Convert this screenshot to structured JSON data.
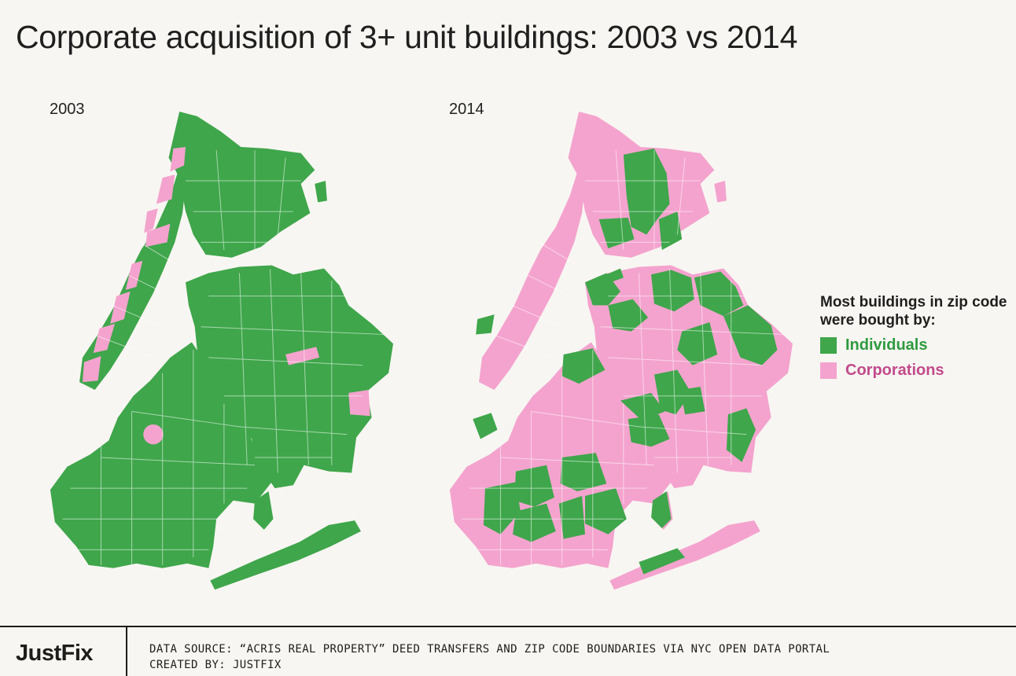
{
  "title": "Corporate acquisition of 3+ unit buildings: 2003 vs 2014",
  "colors": {
    "individuals": "#3fa64b",
    "corporations": "#f4a3ce",
    "corporations_text": "#c24a8c",
    "individuals_text": "#2e9a3f"
  },
  "maps": [
    {
      "year": "2003",
      "corporate_zip_share": "low",
      "icon": "nyc-zip-choropleth"
    },
    {
      "year": "2014",
      "corporate_zip_share": "high",
      "icon": "nyc-zip-choropleth"
    }
  ],
  "legend": {
    "title": "Most buildings in zip code were bought by:",
    "items": [
      {
        "label": "Individuals",
        "color": "#3fa64b"
      },
      {
        "label": "Corporations",
        "color": "#f4a3ce"
      }
    ]
  },
  "footer": {
    "brand": "JustFix",
    "data_source": "DATA SOURCE: “ACRIS REAL PROPERTY” DEED TRANSFERS AND ZIP CODE BOUNDARIES VIA NYC OPEN DATA PORTAL",
    "created_by": "CREATED BY: JUSTFIX"
  }
}
